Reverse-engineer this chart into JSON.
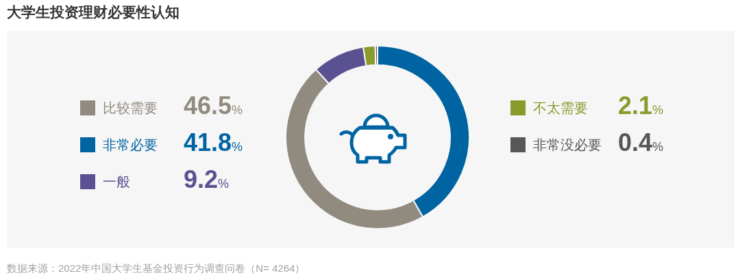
{
  "chart_data": {
    "type": "donut",
    "title": "大学生投资理财必要性认知",
    "categories": [
      "非常必要",
      "比较需要",
      "一般",
      "不太需要",
      "非常没必要"
    ],
    "values": [
      41.8,
      46.5,
      9.2,
      2.1,
      0.4
    ],
    "colors": [
      "#0064a3",
      "#918b7f",
      "#5a5193",
      "#8a9a2b",
      "#555759"
    ],
    "value_labels": [
      "41.8%",
      "46.5%",
      "9.2%",
      "2.1%",
      "0.4%"
    ],
    "legend": "left",
    "annotations": [
      "数据来源：2022年中国大学生基金投资行为调查问卷（N= 4264）"
    ]
  }
}
